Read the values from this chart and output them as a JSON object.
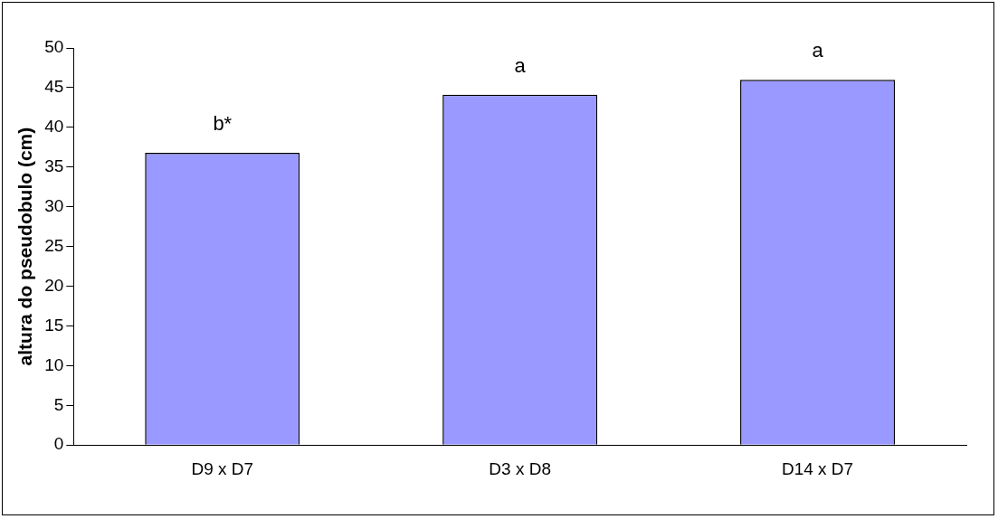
{
  "chart_data": {
    "type": "bar",
    "ylabel": "altura do pseudobulo (cm)",
    "categories": [
      "D9 x D7",
      "D3 x D8",
      "D14 x D7"
    ],
    "values": [
      36.8,
      44.1,
      46
    ],
    "color": "#9999ff",
    "ylim": [
      0,
      50
    ],
    "yticks": [
      0,
      5,
      10,
      15,
      20,
      25,
      30,
      35,
      40,
      45,
      50
    ],
    "grid": false,
    "legend": false,
    "annotations": [
      "b*",
      "a",
      "a"
    ]
  }
}
